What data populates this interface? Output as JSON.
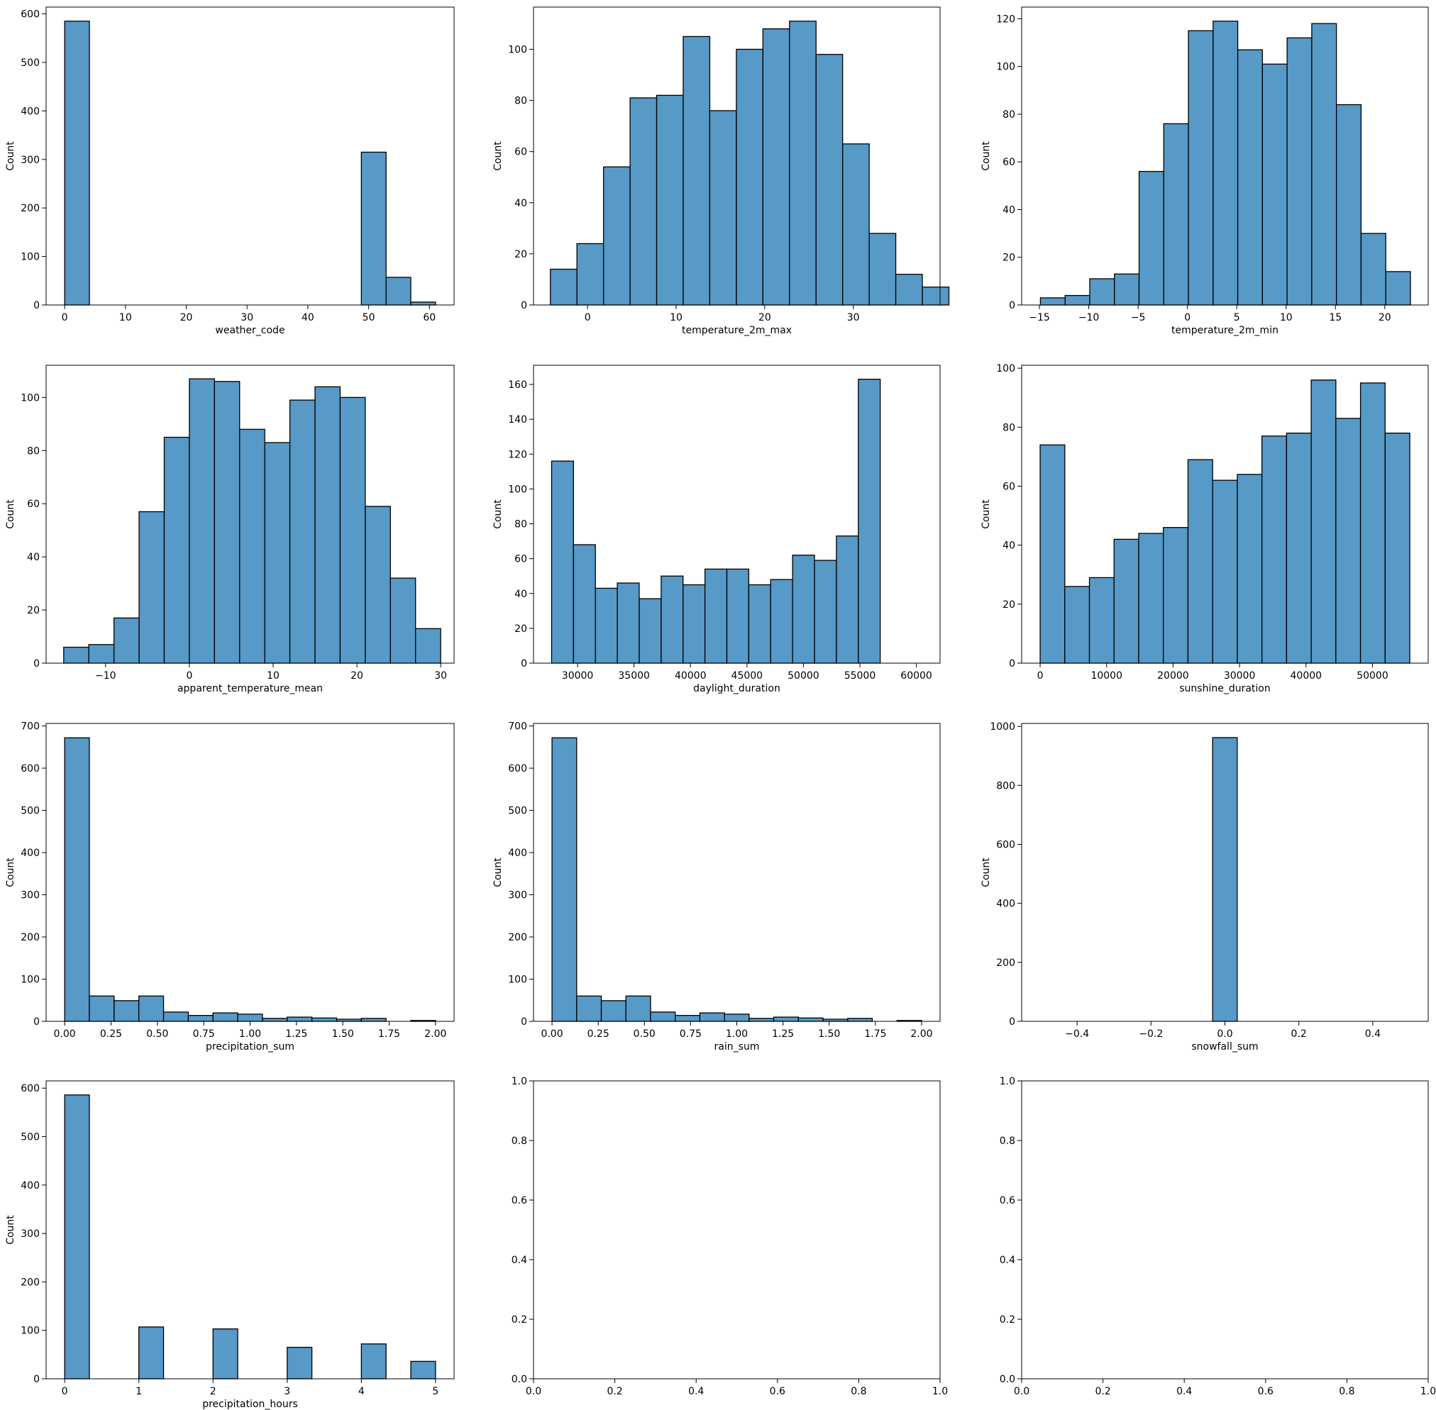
{
  "style": {
    "bar_fill": "#5799c7",
    "bar_edge": "#000000",
    "background": "#ffffff"
  },
  "chart_data": [
    {
      "type": "bar",
      "xlabel": "weather_code",
      "ylabel": "Count",
      "xlim": [
        -3.05,
        64.05
      ],
      "ylim": [
        0,
        614
      ],
      "xticks": [
        0,
        10,
        20,
        30,
        40,
        50,
        60
      ],
      "xtick_labels": [
        "0",
        "10",
        "20",
        "30",
        "40",
        "50",
        "60"
      ],
      "yticks": [
        0,
        100,
        200,
        300,
        400,
        500,
        600
      ],
      "ytick_labels": [
        "0",
        "100",
        "200",
        "300",
        "400",
        "500",
        "600"
      ],
      "bins": [
        {
          "x0": 0,
          "x1": 4.07,
          "count": 585
        },
        {
          "x0": 48.8,
          "x1": 52.87,
          "count": 315
        },
        {
          "x0": 52.87,
          "x1": 56.93,
          "count": 57
        },
        {
          "x0": 56.93,
          "x1": 61,
          "count": 6
        }
      ]
    },
    {
      "type": "bar",
      "xlabel": "temperature_2m_max",
      "ylabel": "Count",
      "xlim": [
        -6.1,
        39.8
      ],
      "ylim": [
        0,
        116.5
      ],
      "xticks": [
        0,
        10,
        20,
        30
      ],
      "xtick_labels": [
        "0",
        "10",
        "20",
        "30"
      ],
      "yticks": [
        0,
        20,
        40,
        60,
        80,
        100
      ],
      "ytick_labels": [
        "0",
        "20",
        "40",
        "60",
        "80",
        "100"
      ],
      "bins": [
        {
          "x0": -4.2,
          "x1": -1.2,
          "count": 14
        },
        {
          "x0": -1.2,
          "x1": 1.8,
          "count": 24
        },
        {
          "x0": 1.8,
          "x1": 4.8,
          "count": 54
        },
        {
          "x0": 4.8,
          "x1": 7.8,
          "count": 81
        },
        {
          "x0": 7.8,
          "x1": 10.8,
          "count": 82
        },
        {
          "x0": 10.8,
          "x1": 13.8,
          "count": 105
        },
        {
          "x0": 13.8,
          "x1": 16.8,
          "count": 76
        },
        {
          "x0": 16.8,
          "x1": 19.8,
          "count": 100
        },
        {
          "x0": 19.8,
          "x1": 22.8,
          "count": 108
        },
        {
          "x0": 22.8,
          "x1": 25.8,
          "count": 111
        },
        {
          "x0": 25.8,
          "x1": 28.8,
          "count": 98
        },
        {
          "x0": 28.8,
          "x1": 31.8,
          "count": 63
        },
        {
          "x0": 31.8,
          "x1": 34.8,
          "count": 28
        },
        {
          "x0": 34.8,
          "x1": 37.8,
          "count": 12
        },
        {
          "x0": 37.8,
          "x1": 40.8,
          "count": 7
        }
      ]
    },
    {
      "type": "bar",
      "xlabel": "temperature_2m_min",
      "ylabel": "Count",
      "xlim": [
        -16.8,
        24.4
      ],
      "ylim": [
        0,
        124.9
      ],
      "xticks": [
        -15,
        -10,
        -5,
        0,
        5,
        10,
        15,
        20
      ],
      "xtick_labels": [
        "−15",
        "−10",
        "−5",
        "0",
        "5",
        "10",
        "15",
        "20"
      ],
      "yticks": [
        0,
        20,
        40,
        60,
        80,
        100,
        120
      ],
      "ytick_labels": [
        "0",
        "20",
        "40",
        "60",
        "80",
        "100",
        "120"
      ],
      "bins": [
        {
          "x0": -14.9,
          "x1": -12.4,
          "count": 3
        },
        {
          "x0": -12.4,
          "x1": -9.9,
          "count": 4
        },
        {
          "x0": -9.9,
          "x1": -7.4,
          "count": 11
        },
        {
          "x0": -7.4,
          "x1": -4.9,
          "count": 13
        },
        {
          "x0": -4.9,
          "x1": -2.4,
          "count": 56
        },
        {
          "x0": -2.4,
          "x1": 0.1,
          "count": 76
        },
        {
          "x0": 0.1,
          "x1": 2.6,
          "count": 115
        },
        {
          "x0": 2.6,
          "x1": 5.1,
          "count": 119
        },
        {
          "x0": 5.1,
          "x1": 7.6,
          "count": 107
        },
        {
          "x0": 7.6,
          "x1": 10.1,
          "count": 101
        },
        {
          "x0": 10.1,
          "x1": 12.6,
          "count": 112
        },
        {
          "x0": 12.6,
          "x1": 15.1,
          "count": 118
        },
        {
          "x0": 15.1,
          "x1": 17.6,
          "count": 84
        },
        {
          "x0": 17.6,
          "x1": 20.1,
          "count": 30
        },
        {
          "x0": 20.1,
          "x1": 22.6,
          "count": 14
        }
      ]
    },
    {
      "type": "bar",
      "xlabel": "apparent_temperature_mean",
      "ylabel": "Count",
      "xlim": [
        -17.1,
        31.6
      ],
      "ylim": [
        0,
        112.1
      ],
      "xticks": [
        -10,
        0,
        10,
        20,
        30
      ],
      "xtick_labels": [
        "−10",
        "0",
        "10",
        "20",
        "30"
      ],
      "yticks": [
        0,
        20,
        40,
        60,
        80,
        100
      ],
      "ytick_labels": [
        "0",
        "20",
        "40",
        "60",
        "80",
        "100"
      ],
      "bins": [
        {
          "x0": -15,
          "x1": -12,
          "count": 6
        },
        {
          "x0": -12,
          "x1": -9,
          "count": 7
        },
        {
          "x0": -9,
          "x1": -6,
          "count": 17
        },
        {
          "x0": -6,
          "x1": -3,
          "count": 57
        },
        {
          "x0": -3,
          "x1": 0,
          "count": 85
        },
        {
          "x0": 0,
          "x1": 3,
          "count": 107
        },
        {
          "x0": 3,
          "x1": 6,
          "count": 106
        },
        {
          "x0": 6,
          "x1": 9,
          "count": 88
        },
        {
          "x0": 9,
          "x1": 12,
          "count": 83
        },
        {
          "x0": 12,
          "x1": 15,
          "count": 99
        },
        {
          "x0": 15,
          "x1": 18,
          "count": 104
        },
        {
          "x0": 18,
          "x1": 21,
          "count": 100
        },
        {
          "x0": 21,
          "x1": 24,
          "count": 59
        },
        {
          "x0": 24,
          "x1": 27,
          "count": 32
        },
        {
          "x0": 27,
          "x1": 30,
          "count": 13
        }
      ]
    },
    {
      "type": "bar",
      "xlabel": "daylight_duration",
      "ylabel": "Count",
      "xlim": [
        26100,
        62100
      ],
      "ylim": [
        0,
        171
      ],
      "xticks": [
        30000,
        35000,
        40000,
        45000,
        50000,
        55000,
        60000
      ],
      "xtick_labels": [
        "30000",
        "35000",
        "40000",
        "45000",
        "50000",
        "55000",
        "60000"
      ],
      "yticks": [
        0,
        20,
        40,
        60,
        80,
        100,
        120,
        140,
        160
      ],
      "ytick_labels": [
        "0",
        "20",
        "40",
        "60",
        "80",
        "100",
        "120",
        "140",
        "160"
      ],
      "bins": [
        {
          "x0": 27700,
          "x1": 29640,
          "count": 116
        },
        {
          "x0": 29640,
          "x1": 31580,
          "count": 68
        },
        {
          "x0": 31580,
          "x1": 33520,
          "count": 43
        },
        {
          "x0": 33520,
          "x1": 35460,
          "count": 46
        },
        {
          "x0": 35460,
          "x1": 37400,
          "count": 37
        },
        {
          "x0": 37400,
          "x1": 39340,
          "count": 50
        },
        {
          "x0": 39340,
          "x1": 41280,
          "count": 45
        },
        {
          "x0": 41280,
          "x1": 43220,
          "count": 54
        },
        {
          "x0": 43220,
          "x1": 45160,
          "count": 54
        },
        {
          "x0": 45160,
          "x1": 47100,
          "count": 45
        },
        {
          "x0": 47100,
          "x1": 49040,
          "count": 48
        },
        {
          "x0": 49040,
          "x1": 50980,
          "count": 62
        },
        {
          "x0": 50980,
          "x1": 52920,
          "count": 59
        },
        {
          "x0": 52920,
          "x1": 54860,
          "count": 73
        },
        {
          "x0": 54860,
          "x1": 56800,
          "count": 163
        }
      ]
    },
    {
      "type": "bar",
      "xlabel": "sunshine_duration",
      "ylabel": "Count",
      "xlim": [
        -2780,
        58380
      ],
      "ylim": [
        0,
        101
      ],
      "xticks": [
        0,
        10000,
        20000,
        30000,
        40000,
        50000
      ],
      "xtick_labels": [
        "0",
        "10000",
        "20000",
        "30000",
        "40000",
        "50000"
      ],
      "yticks": [
        0,
        20,
        40,
        60,
        80,
        100
      ],
      "ytick_labels": [
        "0",
        "20",
        "40",
        "60",
        "80",
        "100"
      ],
      "bins": [
        {
          "x0": 0,
          "x1": 3707,
          "count": 74
        },
        {
          "x0": 3707,
          "x1": 7415,
          "count": 26
        },
        {
          "x0": 7415,
          "x1": 11122,
          "count": 29
        },
        {
          "x0": 11122,
          "x1": 14829,
          "count": 42
        },
        {
          "x0": 14829,
          "x1": 18537,
          "count": 44
        },
        {
          "x0": 18537,
          "x1": 22244,
          "count": 46
        },
        {
          "x0": 22244,
          "x1": 25951,
          "count": 69
        },
        {
          "x0": 25951,
          "x1": 29659,
          "count": 62
        },
        {
          "x0": 29659,
          "x1": 33366,
          "count": 64
        },
        {
          "x0": 33366,
          "x1": 37073,
          "count": 77
        },
        {
          "x0": 37073,
          "x1": 40781,
          "count": 78
        },
        {
          "x0": 40781,
          "x1": 44488,
          "count": 96
        },
        {
          "x0": 44488,
          "x1": 48195,
          "count": 83
        },
        {
          "x0": 48195,
          "x1": 51903,
          "count": 95
        },
        {
          "x0": 51903,
          "x1": 55610,
          "count": 78
        }
      ]
    },
    {
      "type": "bar",
      "xlabel": "precipitation_sum",
      "ylabel": "Count",
      "xlim": [
        -0.1,
        2.1
      ],
      "ylim": [
        0,
        706
      ],
      "xticks": [
        0,
        0.25,
        0.5,
        0.75,
        1,
        1.25,
        1.5,
        1.75,
        2
      ],
      "xtick_labels": [
        "0.00",
        "0.25",
        "0.50",
        "0.75",
        "1.00",
        "1.25",
        "1.50",
        "1.75",
        "2.00"
      ],
      "yticks": [
        0,
        100,
        200,
        300,
        400,
        500,
        600,
        700
      ],
      "ytick_labels": [
        "0",
        "100",
        "200",
        "300",
        "400",
        "500",
        "600",
        "700"
      ],
      "bins": [
        {
          "x0": 0,
          "x1": 0.1333,
          "count": 672
        },
        {
          "x0": 0.1333,
          "x1": 0.2667,
          "count": 60
        },
        {
          "x0": 0.2667,
          "x1": 0.4,
          "count": 49
        },
        {
          "x0": 0.4,
          "x1": 0.5333,
          "count": 60
        },
        {
          "x0": 0.5333,
          "x1": 0.6667,
          "count": 22
        },
        {
          "x0": 0.6667,
          "x1": 0.8,
          "count": 14
        },
        {
          "x0": 0.8,
          "x1": 0.9333,
          "count": 20
        },
        {
          "x0": 0.9333,
          "x1": 1.0667,
          "count": 17
        },
        {
          "x0": 1.0667,
          "x1": 1.2,
          "count": 7
        },
        {
          "x0": 1.2,
          "x1": 1.3333,
          "count": 10
        },
        {
          "x0": 1.3333,
          "x1": 1.4667,
          "count": 8
        },
        {
          "x0": 1.4667,
          "x1": 1.6,
          "count": 5
        },
        {
          "x0": 1.6,
          "x1": 1.7333,
          "count": 7
        },
        {
          "x0": 1.7333,
          "x1": 1.8667,
          "count": 0
        },
        {
          "x0": 1.8667,
          "x1": 2.0,
          "count": 2
        }
      ]
    },
    {
      "type": "bar",
      "xlabel": "rain_sum",
      "ylabel": "Count",
      "xlim": [
        -0.1,
        2.1
      ],
      "ylim": [
        0,
        706
      ],
      "xticks": [
        0,
        0.25,
        0.5,
        0.75,
        1,
        1.25,
        1.5,
        1.75,
        2
      ],
      "xtick_labels": [
        "0.00",
        "0.25",
        "0.50",
        "0.75",
        "1.00",
        "1.25",
        "1.50",
        "1.75",
        "2.00"
      ],
      "yticks": [
        0,
        100,
        200,
        300,
        400,
        500,
        600,
        700
      ],
      "ytick_labels": [
        "0",
        "100",
        "200",
        "300",
        "400",
        "500",
        "600",
        "700"
      ],
      "bins": [
        {
          "x0": 0,
          "x1": 0.1333,
          "count": 672
        },
        {
          "x0": 0.1333,
          "x1": 0.2667,
          "count": 60
        },
        {
          "x0": 0.2667,
          "x1": 0.4,
          "count": 49
        },
        {
          "x0": 0.4,
          "x1": 0.5333,
          "count": 60
        },
        {
          "x0": 0.5333,
          "x1": 0.6667,
          "count": 22
        },
        {
          "x0": 0.6667,
          "x1": 0.8,
          "count": 14
        },
        {
          "x0": 0.8,
          "x1": 0.9333,
          "count": 20
        },
        {
          "x0": 0.9333,
          "x1": 1.0667,
          "count": 17
        },
        {
          "x0": 1.0667,
          "x1": 1.2,
          "count": 7
        },
        {
          "x0": 1.2,
          "x1": 1.3333,
          "count": 10
        },
        {
          "x0": 1.3333,
          "x1": 1.4667,
          "count": 8
        },
        {
          "x0": 1.4667,
          "x1": 1.6,
          "count": 5
        },
        {
          "x0": 1.6,
          "x1": 1.7333,
          "count": 7
        },
        {
          "x0": 1.7333,
          "x1": 1.8667,
          "count": 0
        },
        {
          "x0": 1.8667,
          "x1": 2.0,
          "count": 2
        }
      ]
    },
    {
      "type": "bar",
      "xlabel": "snowfall_sum",
      "ylabel": "Count",
      "xlim": [
        -0.55,
        0.55
      ],
      "ylim": [
        0,
        1010
      ],
      "xticks": [
        -0.4,
        -0.2,
        0,
        0.2,
        0.4
      ],
      "xtick_labels": [
        "−0.4",
        "−0.2",
        "0.0",
        "0.2",
        "0.4"
      ],
      "yticks": [
        0,
        200,
        400,
        600,
        800,
        1000
      ],
      "ytick_labels": [
        "0",
        "200",
        "400",
        "600",
        "800",
        "1000"
      ],
      "bins": [
        {
          "x0": -0.0333,
          "x1": 0.0333,
          "count": 962
        }
      ]
    },
    {
      "type": "bar",
      "xlabel": "precipitation_hours",
      "ylabel": "Count",
      "xlim": [
        -0.25,
        5.25
      ],
      "ylim": [
        0,
        615
      ],
      "xticks": [
        0,
        1,
        2,
        3,
        4,
        5
      ],
      "xtick_labels": [
        "0",
        "1",
        "2",
        "3",
        "4",
        "5"
      ],
      "yticks": [
        0,
        100,
        200,
        300,
        400,
        500,
        600
      ],
      "ytick_labels": [
        "0",
        "100",
        "200",
        "300",
        "400",
        "500",
        "600"
      ],
      "bins": [
        {
          "x0": 0,
          "x1": 0.3333,
          "count": 586
        },
        {
          "x0": 1.0,
          "x1": 1.3333,
          "count": 107
        },
        {
          "x0": 2.0,
          "x1": 2.3333,
          "count": 103
        },
        {
          "x0": 3.0,
          "x1": 3.3333,
          "count": 65
        },
        {
          "x0": 4.0,
          "x1": 4.3333,
          "count": 72
        },
        {
          "x0": 4.6667,
          "x1": 5.0,
          "count": 36
        }
      ]
    },
    {
      "type": "bar",
      "xlabel": "",
      "ylabel": "",
      "xlim": [
        0,
        1
      ],
      "ylim": [
        0,
        1
      ],
      "xticks": [
        0,
        0.2,
        0.4,
        0.6,
        0.8,
        1
      ],
      "xtick_labels": [
        "0.0",
        "0.2",
        "0.4",
        "0.6",
        "0.8",
        "1.0"
      ],
      "yticks": [
        0,
        0.2,
        0.4,
        0.6,
        0.8,
        1
      ],
      "ytick_labels": [
        "0.0",
        "0.2",
        "0.4",
        "0.6",
        "0.8",
        "1.0"
      ],
      "bins": []
    },
    {
      "type": "bar",
      "xlabel": "",
      "ylabel": "",
      "xlim": [
        0,
        1
      ],
      "ylim": [
        0,
        1
      ],
      "xticks": [
        0,
        0.2,
        0.4,
        0.6,
        0.8,
        1
      ],
      "xtick_labels": [
        "0.0",
        "0.2",
        "0.4",
        "0.6",
        "0.8",
        "1.0"
      ],
      "yticks": [
        0,
        0.2,
        0.4,
        0.6,
        0.8,
        1
      ],
      "ytick_labels": [
        "0.0",
        "0.2",
        "0.4",
        "0.6",
        "0.8",
        "1.0"
      ],
      "bins": []
    }
  ]
}
